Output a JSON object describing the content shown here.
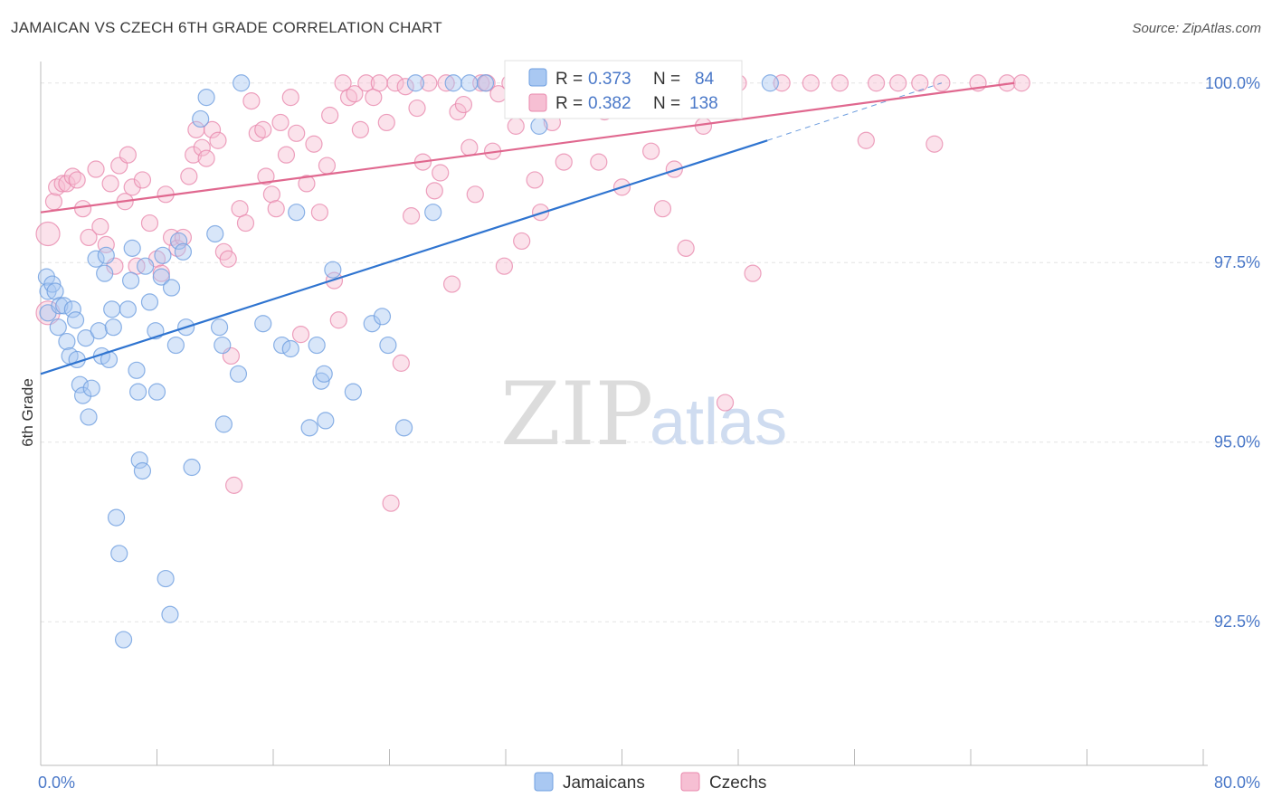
{
  "header": {
    "title": "JAMAICAN VS CZECH 6TH GRADE CORRELATION CHART",
    "source": "Source: ZipAtlas.com"
  },
  "colors": {
    "jamaicans_fill": "#a9c8f2",
    "jamaicans_stroke": "#6f9fe0",
    "jamaicans_line": "#2f74d0",
    "czechs_fill": "#f6bfd3",
    "czechs_stroke": "#e98aae",
    "czechs_line": "#e0688f",
    "tick_text": "#4a78c8",
    "grid": "#e3e3e3"
  },
  "legend": {
    "rows": [
      {
        "r_label": "R = ",
        "r_value": "0.373",
        "n_label": "N = ",
        "n_value": "84"
      },
      {
        "r_label": "R = ",
        "r_value": "0.382",
        "n_label": "N = ",
        "n_value": "138"
      }
    ]
  },
  "bottom_legend": {
    "items": [
      "Jamaicans",
      "Czechs"
    ]
  },
  "watermark": {
    "zip": "ZIP",
    "atlas": "atlas"
  },
  "chart_data": {
    "type": "scatter",
    "title": "JAMAICAN VS CZECH 6TH GRADE CORRELATION CHART",
    "xlabel": "",
    "ylabel": "6th Grade",
    "xlim": [
      0,
      80
    ],
    "ylim": [
      90.5,
      100.4
    ],
    "x_tick_labels": [
      "0.0%",
      "80.0%"
    ],
    "y_ticks": [
      92.5,
      95.0,
      97.5,
      100.0
    ],
    "y_tick_labels": [
      "92.5%",
      "95.0%",
      "97.5%",
      "100.0%"
    ],
    "grid": true,
    "legend_position": "top-center",
    "series": [
      {
        "name": "Jamaicans",
        "r": 0.373,
        "n": 84,
        "trend": {
          "x": [
            0,
            50
          ],
          "y": [
            95.95,
            99.2
          ],
          "dashed_to": [
            62,
            100.0
          ]
        },
        "points": [
          [
            0.5,
            96.8
          ],
          [
            0.4,
            97.3
          ],
          [
            0.5,
            97.1
          ],
          [
            0.8,
            97.2
          ],
          [
            1.0,
            97.1
          ],
          [
            1.3,
            96.9
          ],
          [
            1.2,
            96.6
          ],
          [
            1.6,
            96.9
          ],
          [
            1.8,
            96.4
          ],
          [
            2.0,
            96.2
          ],
          [
            2.2,
            96.85
          ],
          [
            2.4,
            96.7
          ],
          [
            2.5,
            96.15
          ],
          [
            2.7,
            95.8
          ],
          [
            2.9,
            95.65
          ],
          [
            3.1,
            96.45
          ],
          [
            3.3,
            95.35
          ],
          [
            3.5,
            95.75
          ],
          [
            3.8,
            97.55
          ],
          [
            4.0,
            96.55
          ],
          [
            4.2,
            96.2
          ],
          [
            4.4,
            97.35
          ],
          [
            4.5,
            97.6
          ],
          [
            4.7,
            96.15
          ],
          [
            4.9,
            96.85
          ],
          [
            5.0,
            96.6
          ],
          [
            5.2,
            93.95
          ],
          [
            5.4,
            93.45
          ],
          [
            5.7,
            92.25
          ],
          [
            6.0,
            96.85
          ],
          [
            6.2,
            97.25
          ],
          [
            6.3,
            97.7
          ],
          [
            6.6,
            96.0
          ],
          [
            6.7,
            95.7
          ],
          [
            6.8,
            94.75
          ],
          [
            7.0,
            94.6
          ],
          [
            7.2,
            97.45
          ],
          [
            7.5,
            96.95
          ],
          [
            7.9,
            96.55
          ],
          [
            8.0,
            95.7
          ],
          [
            8.3,
            97.3
          ],
          [
            8.4,
            97.6
          ],
          [
            8.6,
            93.1
          ],
          [
            8.9,
            92.6
          ],
          [
            9.0,
            97.15
          ],
          [
            9.3,
            96.35
          ],
          [
            9.5,
            97.8
          ],
          [
            9.8,
            97.65
          ],
          [
            10.0,
            96.6
          ],
          [
            10.4,
            94.65
          ],
          [
            11.0,
            99.5
          ],
          [
            11.4,
            99.8
          ],
          [
            12.0,
            97.9
          ],
          [
            12.3,
            96.6
          ],
          [
            12.5,
            96.35
          ],
          [
            12.6,
            95.25
          ],
          [
            13.6,
            95.95
          ],
          [
            13.8,
            100.0
          ],
          [
            15.3,
            96.65
          ],
          [
            16.6,
            96.35
          ],
          [
            17.2,
            96.3
          ],
          [
            17.6,
            98.2
          ],
          [
            18.5,
            95.2
          ],
          [
            19.0,
            96.35
          ],
          [
            19.3,
            95.85
          ],
          [
            19.5,
            95.95
          ],
          [
            19.6,
            95.3
          ],
          [
            20.1,
            97.4
          ],
          [
            21.5,
            95.7
          ],
          [
            22.8,
            96.65
          ],
          [
            23.5,
            96.75
          ],
          [
            23.9,
            96.35
          ],
          [
            25.0,
            95.2
          ],
          [
            25.8,
            100.0
          ],
          [
            27.0,
            98.2
          ],
          [
            28.4,
            100.0
          ],
          [
            29.5,
            100.0
          ],
          [
            30.6,
            100.0
          ],
          [
            34.3,
            99.4
          ],
          [
            36.9,
            100.0
          ],
          [
            38.8,
            100.0
          ],
          [
            41.0,
            100.0
          ],
          [
            47.5,
            100.0
          ],
          [
            50.2,
            100.0
          ]
        ]
      },
      {
        "name": "Czechs",
        "r": 0.382,
        "n": 138,
        "trend": {
          "x": [
            0,
            67
          ],
          "y": [
            98.2,
            100.0
          ]
        },
        "points": [
          [
            0.5,
            96.8
          ],
          [
            0.5,
            97.9
          ],
          [
            0.9,
            98.35
          ],
          [
            1.1,
            98.55
          ],
          [
            1.5,
            98.6
          ],
          [
            1.8,
            98.6
          ],
          [
            2.2,
            98.7
          ],
          [
            2.5,
            98.65
          ],
          [
            2.9,
            98.25
          ],
          [
            3.3,
            97.85
          ],
          [
            3.8,
            98.8
          ],
          [
            4.1,
            98.0
          ],
          [
            4.5,
            97.75
          ],
          [
            4.8,
            98.6
          ],
          [
            5.1,
            97.45
          ],
          [
            5.4,
            98.85
          ],
          [
            5.8,
            98.35
          ],
          [
            6.0,
            99.0
          ],
          [
            6.3,
            98.55
          ],
          [
            6.6,
            97.45
          ],
          [
            7.0,
            98.65
          ],
          [
            7.5,
            98.05
          ],
          [
            8.0,
            97.55
          ],
          [
            8.3,
            97.35
          ],
          [
            8.6,
            98.45
          ],
          [
            9.0,
            97.85
          ],
          [
            9.4,
            97.7
          ],
          [
            9.8,
            97.85
          ],
          [
            10.2,
            98.7
          ],
          [
            10.5,
            99.0
          ],
          [
            10.7,
            99.35
          ],
          [
            11.1,
            99.1
          ],
          [
            11.4,
            98.95
          ],
          [
            11.8,
            99.35
          ],
          [
            12.2,
            99.2
          ],
          [
            12.6,
            97.65
          ],
          [
            12.9,
            97.55
          ],
          [
            13.1,
            96.2
          ],
          [
            13.3,
            94.4
          ],
          [
            13.7,
            98.25
          ],
          [
            14.1,
            98.05
          ],
          [
            14.5,
            99.75
          ],
          [
            14.9,
            99.3
          ],
          [
            15.3,
            99.35
          ],
          [
            15.5,
            98.7
          ],
          [
            15.9,
            98.45
          ],
          [
            16.2,
            98.25
          ],
          [
            16.5,
            99.45
          ],
          [
            16.9,
            99.0
          ],
          [
            17.2,
            99.8
          ],
          [
            17.6,
            99.3
          ],
          [
            17.9,
            96.5
          ],
          [
            18.3,
            98.6
          ],
          [
            18.8,
            99.15
          ],
          [
            19.2,
            98.2
          ],
          [
            19.7,
            98.85
          ],
          [
            19.9,
            99.55
          ],
          [
            20.2,
            97.25
          ],
          [
            20.5,
            96.7
          ],
          [
            20.8,
            100.0
          ],
          [
            21.2,
            99.8
          ],
          [
            21.6,
            99.85
          ],
          [
            22.0,
            99.35
          ],
          [
            22.4,
            100.0
          ],
          [
            22.9,
            99.8
          ],
          [
            23.3,
            100.0
          ],
          [
            23.8,
            99.45
          ],
          [
            24.1,
            94.15
          ],
          [
            24.4,
            100.0
          ],
          [
            24.8,
            96.1
          ],
          [
            25.1,
            99.95
          ],
          [
            25.5,
            98.15
          ],
          [
            25.9,
            99.65
          ],
          [
            26.3,
            98.9
          ],
          [
            26.7,
            100.0
          ],
          [
            27.1,
            98.5
          ],
          [
            27.5,
            98.75
          ],
          [
            27.9,
            100.0
          ],
          [
            28.3,
            97.2
          ],
          [
            28.7,
            99.6
          ],
          [
            29.1,
            99.7
          ],
          [
            29.5,
            99.1
          ],
          [
            29.9,
            98.45
          ],
          [
            30.3,
            100.0
          ],
          [
            30.7,
            100.0
          ],
          [
            31.1,
            99.05
          ],
          [
            31.5,
            99.85
          ],
          [
            31.9,
            97.45
          ],
          [
            32.3,
            100.0
          ],
          [
            32.7,
            99.4
          ],
          [
            33.1,
            97.8
          ],
          [
            33.6,
            100.0
          ],
          [
            34.0,
            98.65
          ],
          [
            34.4,
            98.2
          ],
          [
            34.8,
            100.0
          ],
          [
            35.2,
            99.45
          ],
          [
            35.6,
            100.0
          ],
          [
            36.0,
            98.9
          ],
          [
            36.4,
            99.8
          ],
          [
            36.8,
            100.0
          ],
          [
            37.2,
            99.9
          ],
          [
            37.6,
            99.75
          ],
          [
            38.0,
            100.0
          ],
          [
            38.4,
            98.9
          ],
          [
            38.8,
            99.6
          ],
          [
            39.2,
            100.0
          ],
          [
            39.6,
            99.95
          ],
          [
            40.0,
            98.55
          ],
          [
            40.4,
            99.7
          ],
          [
            40.8,
            100.0
          ],
          [
            41.2,
            99.8
          ],
          [
            41.6,
            100.0
          ],
          [
            42.0,
            99.05
          ],
          [
            42.4,
            99.85
          ],
          [
            42.8,
            98.25
          ],
          [
            43.2,
            100.0
          ],
          [
            43.6,
            98.8
          ],
          [
            44.0,
            100.0
          ],
          [
            44.4,
            97.7
          ],
          [
            44.8,
            100.0
          ],
          [
            45.2,
            100.0
          ],
          [
            45.6,
            99.4
          ],
          [
            46.0,
            100.0
          ],
          [
            47.1,
            95.55
          ],
          [
            48.0,
            100.0
          ],
          [
            49.0,
            97.35
          ],
          [
            51.0,
            100.0
          ],
          [
            53.0,
            100.0
          ],
          [
            55.0,
            100.0
          ],
          [
            56.8,
            99.2
          ],
          [
            57.5,
            100.0
          ],
          [
            59.0,
            100.0
          ],
          [
            60.5,
            100.0
          ],
          [
            61.5,
            99.15
          ],
          [
            62.0,
            100.0
          ],
          [
            64.5,
            100.0
          ],
          [
            66.5,
            100.0
          ],
          [
            67.5,
            100.0
          ]
        ]
      }
    ]
  }
}
